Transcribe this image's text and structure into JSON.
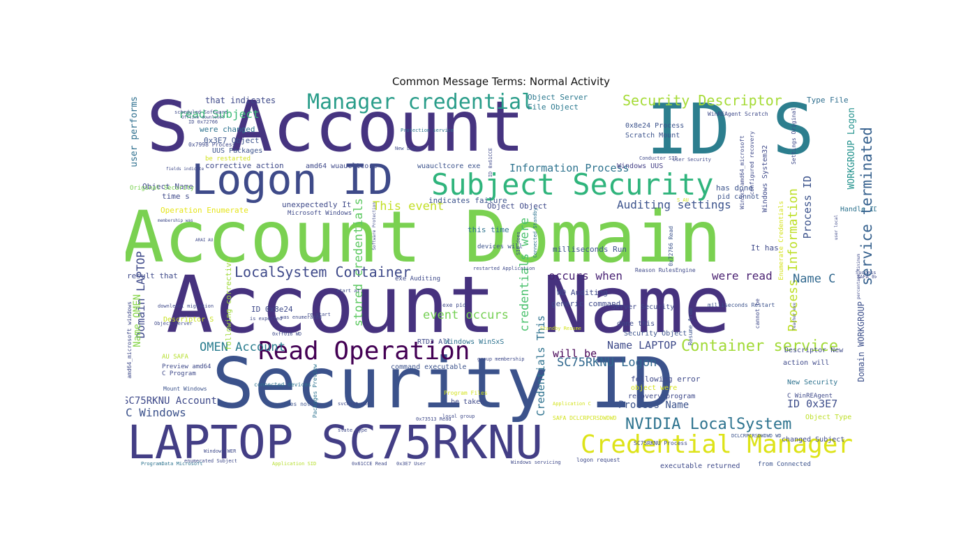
{
  "title": "Common Message Terms: Normal Activity",
  "palette": "viridis",
  "words": [
    {
      "text": "Account Name",
      "color": "#46327e"
    },
    {
      "text": "Account Domain",
      "color": "#7ad151"
    },
    {
      "text": "Security ID",
      "color": "#3b528b"
    },
    {
      "text": "S Account",
      "color": "#463480"
    },
    {
      "text": "ID S",
      "color": "#2c7e8e"
    },
    {
      "text": "LAPTOP SC75RKNU",
      "color": "#433e85"
    },
    {
      "text": "Logon ID",
      "color": "#3e4a89"
    },
    {
      "text": "Subject Security",
      "color": "#2fb47c"
    },
    {
      "text": "Credential Manager",
      "color": "#dde318"
    },
    {
      "text": "Read Operation",
      "color": "#440154"
    },
    {
      "text": "Manager credential",
      "color": "#2a9d8a"
    },
    {
      "text": "Security Descriptor",
      "color": "#a5db36"
    },
    {
      "text": "LocalSystem Container",
      "color": "#3e4989"
    },
    {
      "text": "Container service",
      "color": "#a2da37"
    },
    {
      "text": "NVIDIA LocalSystem",
      "color": "#2c728e"
    },
    {
      "text": "service terminated",
      "color": "#35608d"
    },
    {
      "text": "Process Information",
      "color": "#bddf26"
    },
    {
      "text": "stored credentials",
      "color": "#5ec962"
    },
    {
      "text": "credentials were",
      "color": "#4ac16d"
    },
    {
      "text": "OMEN Account",
      "color": "#287c8e"
    },
    {
      "text": "SC75RKNU Logon",
      "color": "#31688e"
    },
    {
      "text": "Auditing settings",
      "color": "#3b528b"
    },
    {
      "text": "Information Process",
      "color": "#2c728e"
    },
    {
      "text": "read Subject",
      "color": "#3aba76"
    },
    {
      "text": "This event",
      "color": "#c2df23"
    },
    {
      "text": "event occurs",
      "color": "#75d054"
    },
    {
      "text": "occurs when",
      "color": "#482173"
    },
    {
      "text": "were read",
      "color": "#481f70"
    },
    {
      "text": "Name C",
      "color": "#31688e"
    },
    {
      "text": "Name LAPTOP",
      "color": "#3e4a89"
    },
    {
      "text": "Domain LAPTOP",
      "color": "#3e4989"
    },
    {
      "text": "Name OMEN",
      "color": "#86d549"
    },
    {
      "text": "C Windows",
      "color": "#3b518b"
    },
    {
      "text": "SC75RKNU Account",
      "color": "#3e4989"
    },
    {
      "text": "ID 0x3E7",
      "color": "#3d4d8a"
    },
    {
      "text": "Process Name",
      "color": "#3b528b"
    },
    {
      "text": "Credentials This",
      "color": "#2d718e"
    },
    {
      "text": "WORKGROUP Logon",
      "color": "#21918c"
    },
    {
      "text": "Domain WORKGROUP",
      "color": "#3c4f8a"
    },
    {
      "text": "Process ID",
      "color": "#3b528b"
    },
    {
      "text": "will be",
      "color": "#440154"
    },
    {
      "text": "user performs",
      "color": "#2e6f8e"
    },
    {
      "text": "that indicates",
      "color": "#3e4989"
    },
    {
      "text": "Type File",
      "color": "#2e6e8e"
    },
    {
      "text": "Object Server",
      "color": "#2a788e"
    },
    {
      "text": "File Object",
      "color": "#2a788e"
    },
    {
      "text": "0x8e24 Process",
      "color": "#3b528b"
    },
    {
      "text": "Scratch Mount",
      "color": "#3b528b"
    },
    {
      "text": "Windows UUS",
      "color": "#433e85"
    },
    {
      "text": "0x3E7 Object",
      "color": "#3b528b"
    },
    {
      "text": "UUS Packages",
      "color": "#3b528b"
    },
    {
      "text": "were changed",
      "color": "#2c728e"
    },
    {
      "text": "be restarted",
      "color": "#d2e21b"
    },
    {
      "text": "corrective action",
      "color": "#3e4989"
    },
    {
      "text": "amd64 wuaucltcore",
      "color": "#3e4989"
    },
    {
      "text": "wuaucltcore exe",
      "color": "#3b528b"
    },
    {
      "text": "Object Name",
      "color": "#3e4989"
    },
    {
      "text": "time s",
      "color": "#3e4989"
    },
    {
      "text": "Operation Enumerate",
      "color": "#e5e419"
    },
    {
      "text": "unexpectedly It",
      "color": "#3e4989"
    },
    {
      "text": "Microsoft Windows",
      "color": "#3e4989"
    },
    {
      "text": "indicates failure",
      "color": "#3b528b"
    },
    {
      "text": "Object Object",
      "color": "#3e4989"
    },
    {
      "text": "this time",
      "color": "#2c728e"
    },
    {
      "text": "devices will",
      "color": "#3b528b"
    },
    {
      "text": "has done",
      "color": "#3b528b"
    },
    {
      "text": "pid cannot",
      "color": "#3b528b"
    },
    {
      "text": "Handle ID",
      "color": "#2c728e"
    },
    {
      "text": "It has",
      "color": "#3e4989"
    },
    {
      "text": "milliseconds Run",
      "color": "#3b528b"
    },
    {
      "text": "WD Auditing",
      "color": "#3e4989"
    },
    {
      "text": "generic command",
      "color": "#3e4989"
    },
    {
      "text": "result that",
      "color": "#3e4989"
    },
    {
      "text": "following corrective",
      "color": "#9fda3a"
    },
    {
      "text": "ID 0x8e24",
      "color": "#3e4989"
    },
    {
      "text": "exe Auditing",
      "color": "#3e4989"
    },
    {
      "text": "Windows WinSxS",
      "color": "#2c728e"
    },
    {
      "text": "RTD3 All",
      "color": "#3e4989"
    },
    {
      "text": "AU SAFA",
      "color": "#b5de2b"
    },
    {
      "text": "Preview amd64",
      "color": "#3e4989"
    },
    {
      "text": "Descriptor S",
      "color": "#c8e020"
    },
    {
      "text": "command executable",
      "color": "#3b528b"
    },
    {
      "text": "C Program",
      "color": "#3e4989"
    },
    {
      "text": "following error",
      "color": "#3e4989"
    },
    {
      "text": "object were",
      "color": "#d5e21a"
    },
    {
      "text": "recovery program",
      "color": "#3e4989"
    },
    {
      "text": "Server Security",
      "color": "#3e4989"
    },
    {
      "text": "done this",
      "color": "#3e4989"
    },
    {
      "text": "Security Object",
      "color": "#3b528b"
    },
    {
      "text": "action will",
      "color": "#3e4989"
    },
    {
      "text": "Descriptor New",
      "color": "#3e4989"
    },
    {
      "text": "New Security",
      "color": "#2c728e"
    },
    {
      "text": "C WinREAgent",
      "color": "#3e4989"
    },
    {
      "text": "Object Type",
      "color": "#bddf26"
    },
    {
      "text": "changed Subject",
      "color": "#3e4989"
    },
    {
      "text": "Mount Windows",
      "color": "#3b528b"
    },
    {
      "text": "does not",
      "color": "#3b528b"
    },
    {
      "text": "be taken",
      "color": "#3e4989"
    },
    {
      "text": "Program Files",
      "color": "#d2e21b"
    },
    {
      "text": "executable returned",
      "color": "#3e4989"
    },
    {
      "text": "from Connected",
      "color": "#3b528b"
    },
    {
      "text": "connected devices",
      "color": "#2c728e"
    },
    {
      "text": "Packages Preview",
      "color": "#2c728e"
    },
    {
      "text": "amd64_microsoft windows",
      "color": "#3e4989"
    },
    {
      "text": "Original Security",
      "color": "#7ad151"
    },
    {
      "text": "Windows System32",
      "color": "#3e4989"
    },
    {
      "text": "Enumerate Credentials",
      "color": "#d5e21a"
    },
    {
      "text": "Settings Original",
      "color": "#3e4989"
    },
    {
      "text": "WinSxS amd64_microsoft",
      "color": "#3e4989"
    },
    {
      "text": "configured recovery",
      "color": "#3e4989"
    },
    {
      "text": "WinREAgent Scratch",
      "color": "#3e4989"
    },
    {
      "text": "SID does",
      "color": "#3e4989"
    },
    {
      "text": "Connected Standby",
      "color": "#2c728e"
    },
    {
      "text": "Resume from",
      "color": "#3b528b"
    },
    {
      "text": "milliseconds Restart",
      "color": "#3b528b"
    },
    {
      "text": "0x72766 Read",
      "color": "#3b528b"
    },
    {
      "text": "Reason RulesEngine",
      "color": "#3e4989"
    },
    {
      "text": "cannot be",
      "color": "#3e4989"
    },
    {
      "text": "Successfully scheduled",
      "color": "#3e4989"
    },
    {
      "text": "SAFA 0xff016",
      "color": "#3e4989"
    },
    {
      "text": "logon request",
      "color": "#3e4989"
    },
    {
      "text": "SAFA DCLCRPCRSDWDWD",
      "color": "#d2e21b"
    },
    {
      "text": "DCLCRPCRSDWDWD WD",
      "color": "#3b528b"
    },
    {
      "text": "SC75RKNU Process",
      "color": "#3e4989"
    },
    {
      "text": "Windows servicing",
      "color": "#3e4989"
    },
    {
      "text": "enumerated Subject",
      "color": "#3e4989"
    },
    {
      "text": "ProgramData Microsoft",
      "color": "#2c728e"
    },
    {
      "text": "Application SID",
      "color": "#b5de2b"
    },
    {
      "text": "Application C",
      "color": "#d2e21b"
    },
    {
      "text": "0x73513 Read",
      "color": "#3e4989"
    },
    {
      "text": "0x3E7 User",
      "color": "#3e4989"
    },
    {
      "text": "0x61CCE Read",
      "color": "#3e4989"
    },
    {
      "text": "Windows WER",
      "color": "#3e4989"
    },
    {
      "text": "svchost exe",
      "color": "#3e4989"
    },
    {
      "text": "state type",
      "color": "#3e4989"
    },
    {
      "text": "local group",
      "color": "#3e4989"
    },
    {
      "text": "group membership",
      "color": "#3e4989"
    },
    {
      "text": "was enumerated",
      "color": "#3e4989"
    },
    {
      "text": "is expected",
      "color": "#3e4989"
    },
    {
      "text": "Standby Resume",
      "color": "#d2e21b"
    },
    {
      "text": "restarted Application",
      "color": "#3e4989"
    },
    {
      "text": "ID 0x72766",
      "color": "#3e4989"
    },
    {
      "text": "Offline downlevel",
      "color": "#3e4989"
    },
    {
      "text": "scheduled Software",
      "color": "#3e4989"
    },
    {
      "text": "fields indicate",
      "color": "#3e4989"
    },
    {
      "text": "membership was",
      "color": "#3e4989"
    },
    {
      "text": "Software Protection",
      "color": "#3e4989"
    },
    {
      "text": "Protection service",
      "color": "#2c728e"
    },
    {
      "text": "New Logon",
      "color": "#3e4989"
    },
    {
      "text": "ID 0x61CCE",
      "color": "#3e4989"
    },
    {
      "text": "Conductor SID",
      "color": "#3e4989"
    },
    {
      "text": "User Security",
      "color": "#3e4989"
    },
    {
      "text": "S AU",
      "color": "#d2e21b"
    },
    {
      "text": "user local",
      "color": "#3e4989"
    },
    {
      "text": "percentage Minimum",
      "color": "#3e4989"
    },
    {
      "text": "Teacher exe",
      "color": "#3e4989"
    },
    {
      "text": "downlevel migration",
      "color": "#3e4989"
    },
    {
      "text": "start at",
      "color": "#3e4989"
    },
    {
      "text": "re start",
      "color": "#3e4989"
    },
    {
      "text": "0xff016 WD",
      "color": "#3e4989"
    },
    {
      "text": "ARAI AU",
      "color": "#3e4989"
    },
    {
      "text": "0x7998 Process",
      "color": "#3e4989"
    },
    {
      "text": "exe pid",
      "color": "#3e4989"
    },
    {
      "text": "Object Server",
      "color": "#3e4989"
    }
  ]
}
